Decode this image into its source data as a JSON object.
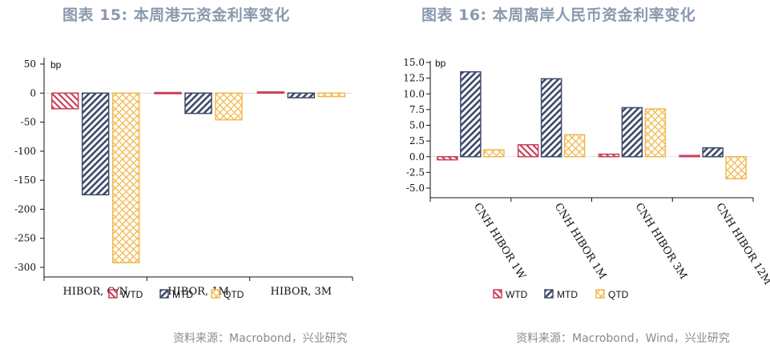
{
  "left": {
    "title": "图表 15: 本周港元资金利率变化",
    "source": "资料来源：Macrobond，兴业研究"
  },
  "right": {
    "title": "图表 16: 本周离岸人民币资金利率变化",
    "source": "资料来源：Macrobond，Wind，兴业研究"
  },
  "colors": {
    "wtd": "#c8415a",
    "mtd": "#3f4a6b",
    "qtd": "#f2b84e"
  },
  "chart_data": [
    {
      "type": "bar",
      "unit_label": "bp",
      "categories": [
        "HIBOR, O/N",
        "HIBOR, 1M",
        "HIBOR, 3M"
      ],
      "series": [
        {
          "name": "WTD",
          "values": [
            -27,
            1,
            2
          ]
        },
        {
          "name": "MTD",
          "values": [
            -175,
            -35,
            -8
          ]
        },
        {
          "name": "QTD",
          "values": [
            -292,
            -46,
            -6
          ]
        }
      ],
      "ylim": [
        -300,
        50
      ],
      "yticks": [
        50,
        0,
        -50,
        -100,
        -150,
        -200,
        -250,
        -300
      ],
      "legend": "bottom"
    },
    {
      "type": "bar",
      "unit_label": "bp",
      "categories": [
        "CNH HIBOR 1W",
        "CNH HIBOR 1M",
        "CNH HIBOR 3M",
        "CNH HIBOR 12M"
      ],
      "series": [
        {
          "name": "WTD",
          "values": [
            -0.5,
            1.9,
            0.4,
            0.2
          ]
        },
        {
          "name": "MTD",
          "values": [
            13.5,
            12.4,
            7.8,
            1.4
          ]
        },
        {
          "name": "QTD",
          "values": [
            1.1,
            3.5,
            7.6,
            -3.5
          ]
        }
      ],
      "ylim": [
        -5,
        15
      ],
      "yticks": [
        "15.0",
        "12.5",
        "10.0",
        "7.5",
        "5.0",
        "2.5",
        "0.0",
        "-2.5",
        "-5.0"
      ],
      "legend": "bottom"
    }
  ]
}
